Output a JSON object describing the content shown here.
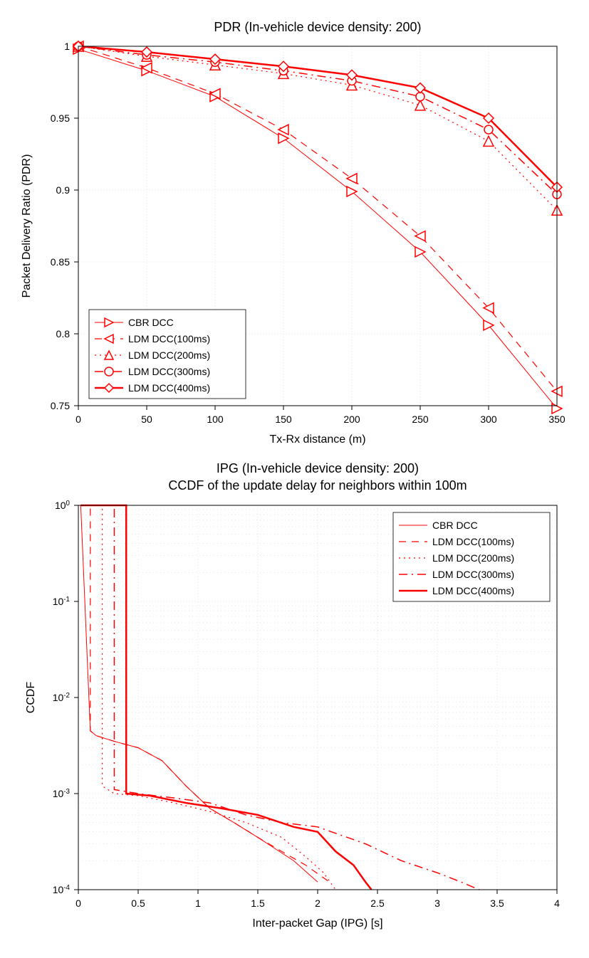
{
  "chart1": {
    "type": "line",
    "title": "PDR (In-vehicle device density: 200)",
    "title_fontsize": 18,
    "xlabel": "Tx-Rx distance (m)",
    "ylabel": "Packet Delivery Ratio (PDR)",
    "label_fontsize": 16,
    "tick_fontsize": 14,
    "xlim": [
      0,
      350
    ],
    "ylim": [
      0.75,
      1.0
    ],
    "xticks": [
      0,
      50,
      100,
      150,
      200,
      250,
      300,
      350
    ],
    "yticks": [
      0.75,
      0.8,
      0.85,
      0.9,
      0.95,
      1.0
    ],
    "grid_color": "#cccccc",
    "background_color": "#ffffff",
    "axis_color": "#000000",
    "line_color": "#ff0000",
    "x_values": [
      0,
      50,
      100,
      150,
      200,
      250,
      300,
      350
    ],
    "legend_position": "bottom-left",
    "legend_fontsize": 14,
    "series": [
      {
        "label": "CBR DCC",
        "marker": "triangle-right",
        "dash": "solid",
        "width": 1.0,
        "y_values": [
          0.998,
          0.983,
          0.965,
          0.936,
          0.899,
          0.857,
          0.806,
          0.748
        ]
      },
      {
        "label": "LDM DCC(100ms)",
        "marker": "triangle-left",
        "dash": "dash",
        "width": 1.2,
        "y_values": [
          1.0,
          0.985,
          0.967,
          0.942,
          0.908,
          0.868,
          0.818,
          0.76
        ]
      },
      {
        "label": "LDM DCC(200ms)",
        "marker": "triangle-up",
        "dash": "dot",
        "width": 1.2,
        "y_values": [
          1.0,
          0.993,
          0.987,
          0.981,
          0.973,
          0.959,
          0.934,
          0.886
        ]
      },
      {
        "label": "LDM DCC(300ms)",
        "marker": "circle",
        "dash": "dashdot",
        "width": 1.5,
        "y_values": [
          1.0,
          0.994,
          0.989,
          0.983,
          0.976,
          0.965,
          0.942,
          0.897
        ]
      },
      {
        "label": "LDM DCC(400ms)",
        "marker": "diamond",
        "dash": "solid",
        "width": 2.5,
        "y_values": [
          1.0,
          0.996,
          0.991,
          0.986,
          0.98,
          0.971,
          0.95,
          0.902
        ]
      }
    ]
  },
  "chart2": {
    "type": "line-log",
    "title_line1": "IPG (In-vehicle device density: 200)",
    "title_line2": "CCDF of the update delay for neighbors within 100m",
    "title_fontsize": 18,
    "xlabel": "Inter-packet Gap (IPG) [s]",
    "ylabel": "CCDF",
    "label_fontsize": 16,
    "tick_fontsize": 14,
    "xlim": [
      0,
      4
    ],
    "ylim_log": [
      -4,
      0
    ],
    "xticks": [
      0,
      0.5,
      1,
      1.5,
      2,
      2.5,
      3,
      3.5,
      4
    ],
    "ytick_exponents": [
      0,
      -1,
      -2,
      -3,
      -4
    ],
    "grid_color": "#cccccc",
    "background_color": "#ffffff",
    "axis_color": "#000000",
    "line_color": "#ff0000",
    "legend_position": "top-right",
    "legend_fontsize": 14,
    "series": [
      {
        "label": "CBR DCC",
        "dash": "solid",
        "width": 1.0,
        "points": [
          [
            0.02,
            1
          ],
          [
            0.1,
            0.0045
          ],
          [
            0.15,
            0.004
          ],
          [
            0.3,
            0.0035
          ],
          [
            0.5,
            0.003
          ],
          [
            0.7,
            0.0022
          ],
          [
            0.9,
            0.0012
          ],
          [
            1.1,
            0.0007
          ],
          [
            1.3,
            0.0005
          ],
          [
            1.5,
            0.00035
          ],
          [
            1.8,
            0.0002
          ],
          [
            2.0,
            0.00012
          ]
        ]
      },
      {
        "label": "LDM DCC(100ms)",
        "dash": "dash",
        "width": 1.2,
        "points": [
          [
            0.02,
            1
          ],
          [
            0.1,
            1
          ],
          [
            0.1,
            0.0045
          ],
          [
            0.15,
            0.004
          ],
          [
            0.3,
            0.0035
          ],
          [
            0.5,
            0.003
          ],
          [
            0.7,
            0.0022
          ],
          [
            0.9,
            0.0012
          ],
          [
            1.1,
            0.0007
          ],
          [
            1.3,
            0.0005
          ],
          [
            1.5,
            0.00035
          ],
          [
            1.7,
            0.00025
          ],
          [
            1.9,
            0.00018
          ],
          [
            2.1,
            0.00012
          ]
        ]
      },
      {
        "label": "LDM DCC(200ms)",
        "dash": "dot",
        "width": 1.2,
        "points": [
          [
            0.02,
            1
          ],
          [
            0.2,
            1
          ],
          [
            0.2,
            0.0012
          ],
          [
            0.3,
            0.001
          ],
          [
            0.5,
            0.00095
          ],
          [
            0.8,
            0.0008
          ],
          [
            1.1,
            0.00065
          ],
          [
            1.4,
            0.0005
          ],
          [
            1.7,
            0.00035
          ],
          [
            1.9,
            0.00022
          ],
          [
            2.05,
            0.00015
          ],
          [
            2.15,
            0.0001
          ]
        ]
      },
      {
        "label": "LDM DCC(300ms)",
        "dash": "dashdot",
        "width": 1.5,
        "points": [
          [
            0.02,
            1
          ],
          [
            0.3,
            1
          ],
          [
            0.3,
            0.0011
          ],
          [
            0.5,
            0.001
          ],
          [
            0.8,
            0.0009
          ],
          [
            1.1,
            0.0008
          ],
          [
            1.4,
            0.0006
          ],
          [
            1.7,
            0.0005
          ],
          [
            2.0,
            0.00045
          ],
          [
            2.4,
            0.0003
          ],
          [
            2.7,
            0.0002
          ],
          [
            3.0,
            0.00015
          ],
          [
            3.2,
            0.00012
          ],
          [
            3.35,
            0.0001
          ]
        ]
      },
      {
        "label": "LDM DCC(400ms)",
        "dash": "solid",
        "width": 2.5,
        "points": [
          [
            0.02,
            1
          ],
          [
            0.4,
            1
          ],
          [
            0.4,
            0.001
          ],
          [
            0.6,
            0.00095
          ],
          [
            0.9,
            0.0008
          ],
          [
            1.2,
            0.0007
          ],
          [
            1.5,
            0.0006
          ],
          [
            1.8,
            0.00045
          ],
          [
            2.0,
            0.0004
          ],
          [
            2.15,
            0.00025
          ],
          [
            2.3,
            0.00018
          ],
          [
            2.4,
            0.00012
          ],
          [
            2.45,
            0.0001
          ]
        ]
      }
    ]
  }
}
